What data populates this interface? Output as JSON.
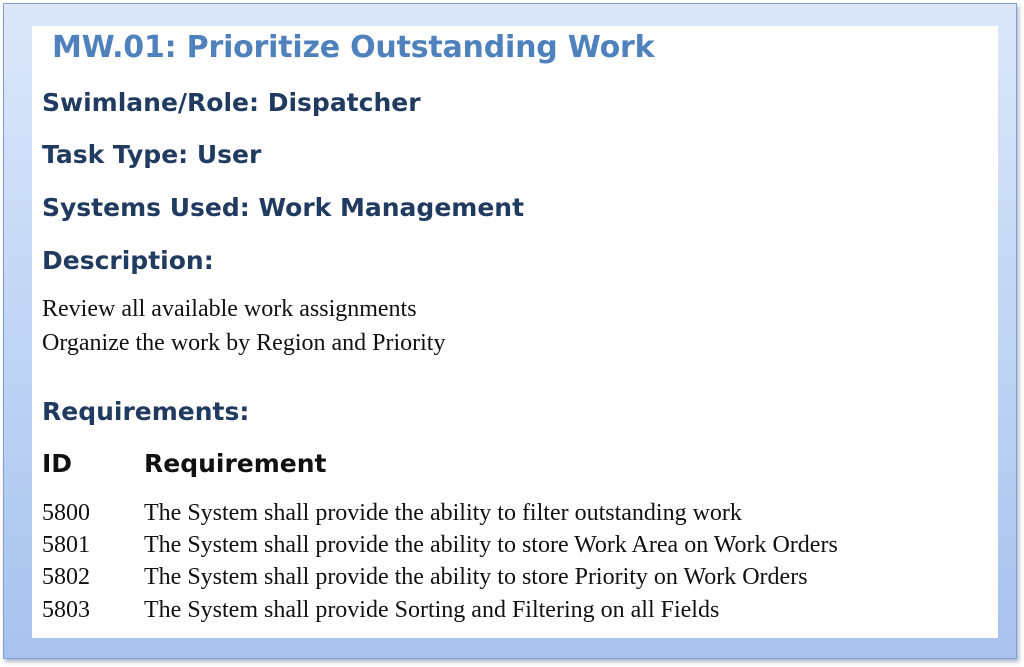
{
  "title": "MW.01: Prioritize Outstanding Work",
  "swimlane": {
    "label": "Swimlane/Role:",
    "value": "Dispatcher"
  },
  "task_type": {
    "label": "Task Type:",
    "value": "User"
  },
  "systems_used": {
    "label": "Systems Used:",
    "value": "Work Management"
  },
  "description": {
    "heading": "Description:",
    "lines": [
      "Review all available work assignments",
      "Organize the work by Region and Priority"
    ]
  },
  "requirements": {
    "heading": "Requirements:",
    "columns": {
      "id": "ID",
      "requirement": "Requirement"
    },
    "rows": [
      {
        "id": "5800",
        "text": "The System shall provide the ability to filter outstanding work"
      },
      {
        "id": "5801",
        "text": "The System shall provide the ability to store Work Area on Work Orders"
      },
      {
        "id": "5802",
        "text": "The System shall provide the ability to store Priority on Work Orders"
      },
      {
        "id": "5803",
        "text": "The System shall provide Sorting and Filtering on all Fields"
      }
    ]
  }
}
